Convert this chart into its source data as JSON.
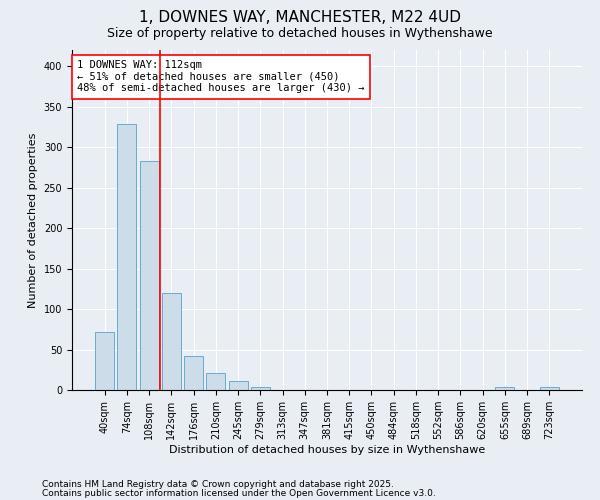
{
  "title": "1, DOWNES WAY, MANCHESTER, M22 4UD",
  "subtitle": "Size of property relative to detached houses in Wythenshawe",
  "xlabel": "Distribution of detached houses by size in Wythenshawe",
  "ylabel": "Number of detached properties",
  "categories": [
    "40sqm",
    "74sqm",
    "108sqm",
    "142sqm",
    "176sqm",
    "210sqm",
    "245sqm",
    "279sqm",
    "313sqm",
    "347sqm",
    "381sqm",
    "415sqm",
    "450sqm",
    "484sqm",
    "518sqm",
    "552sqm",
    "586sqm",
    "620sqm",
    "655sqm",
    "689sqm",
    "723sqm"
  ],
  "values": [
    72,
    328,
    283,
    120,
    42,
    21,
    11,
    4,
    0,
    0,
    0,
    0,
    0,
    0,
    0,
    0,
    0,
    0,
    4,
    0,
    4
  ],
  "bar_color": "#ccdce8",
  "bar_edge_color": "#6aaacf",
  "vline_x": 2.5,
  "vline_color": "red",
  "annotation_text": "1 DOWNES WAY: 112sqm\n← 51% of detached houses are smaller (450)\n48% of semi-detached houses are larger (430) →",
  "annotation_box_color": "white",
  "annotation_box_edge_color": "red",
  "ylim": [
    0,
    420
  ],
  "yticks": [
    0,
    50,
    100,
    150,
    200,
    250,
    300,
    350,
    400
  ],
  "footer_line1": "Contains HM Land Registry data © Crown copyright and database right 2025.",
  "footer_line2": "Contains public sector information licensed under the Open Government Licence v3.0.",
  "background_color": "#e8eef4",
  "plot_bg_color": "#e8eef4",
  "title_fontsize": 11,
  "subtitle_fontsize": 9,
  "axis_label_fontsize": 8,
  "tick_fontsize": 7,
  "footer_fontsize": 6.5,
  "annotation_fontsize": 7.5
}
